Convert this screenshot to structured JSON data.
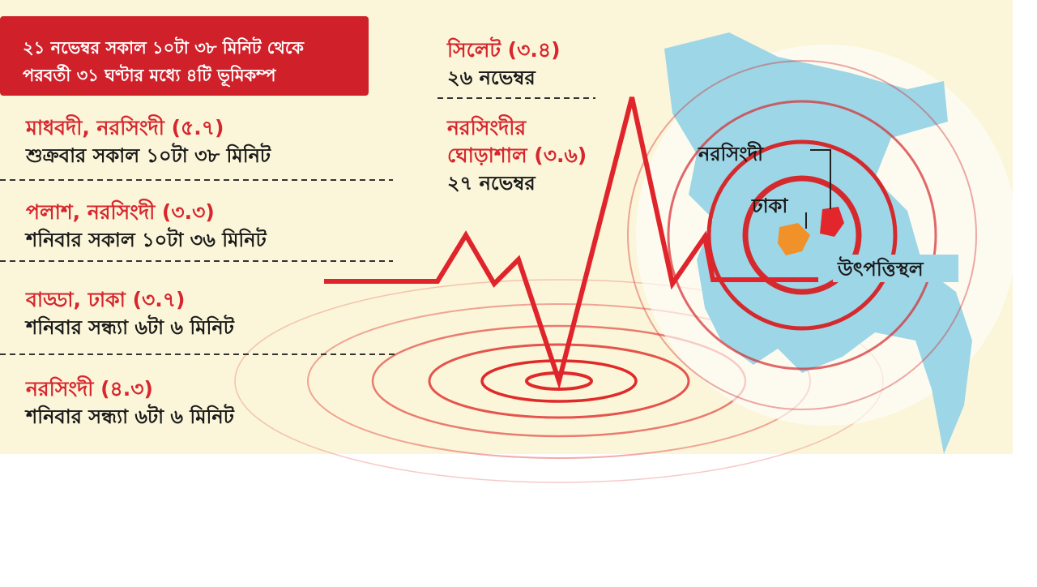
{
  "header": {
    "lines": [
      "২১ নভেম্বর সকাল ১০টা ৩৮ মিনিট থেকে",
      "পরবর্তী ৩১ ঘণ্টার মধ্যে ৪টি ভূমিকম্প"
    ]
  },
  "left_entries": [
    {
      "place": "মাধবদী, নরসিংদী (৫.৭)",
      "time": "শুক্রবার সকাল ১০টা ৩৮ মিনিট"
    },
    {
      "place": "পলাশ, নরসিংদী (৩.৩)",
      "time": "শনিবার সকাল ১০টা ৩৬ মিনিট"
    },
    {
      "place": "বাড্ডা, ঢাকা (৩.৭)",
      "time": "শনিবার সন্ধ্যা ৬টা ৬ মিনিট"
    },
    {
      "place": "নরসিংদী (৪.৩)",
      "time": "শনিবার সন্ধ্যা ৬টা ৬ মিনিট"
    }
  ],
  "right_entries": [
    {
      "place_lines": [
        "সিলেট (৩.৪)"
      ],
      "date": "২৬ নভেম্বর"
    },
    {
      "place_lines": [
        "নরসিংদীর",
        "ঘোড়াশাল (৩.৬)"
      ],
      "date": "২৭ নভেম্বর"
    }
  ],
  "map_labels": {
    "narsingdi": "নরসিংদী",
    "dhaka": "ঢাকা",
    "epicenter": "উৎপত্তিস্থল"
  }
}
